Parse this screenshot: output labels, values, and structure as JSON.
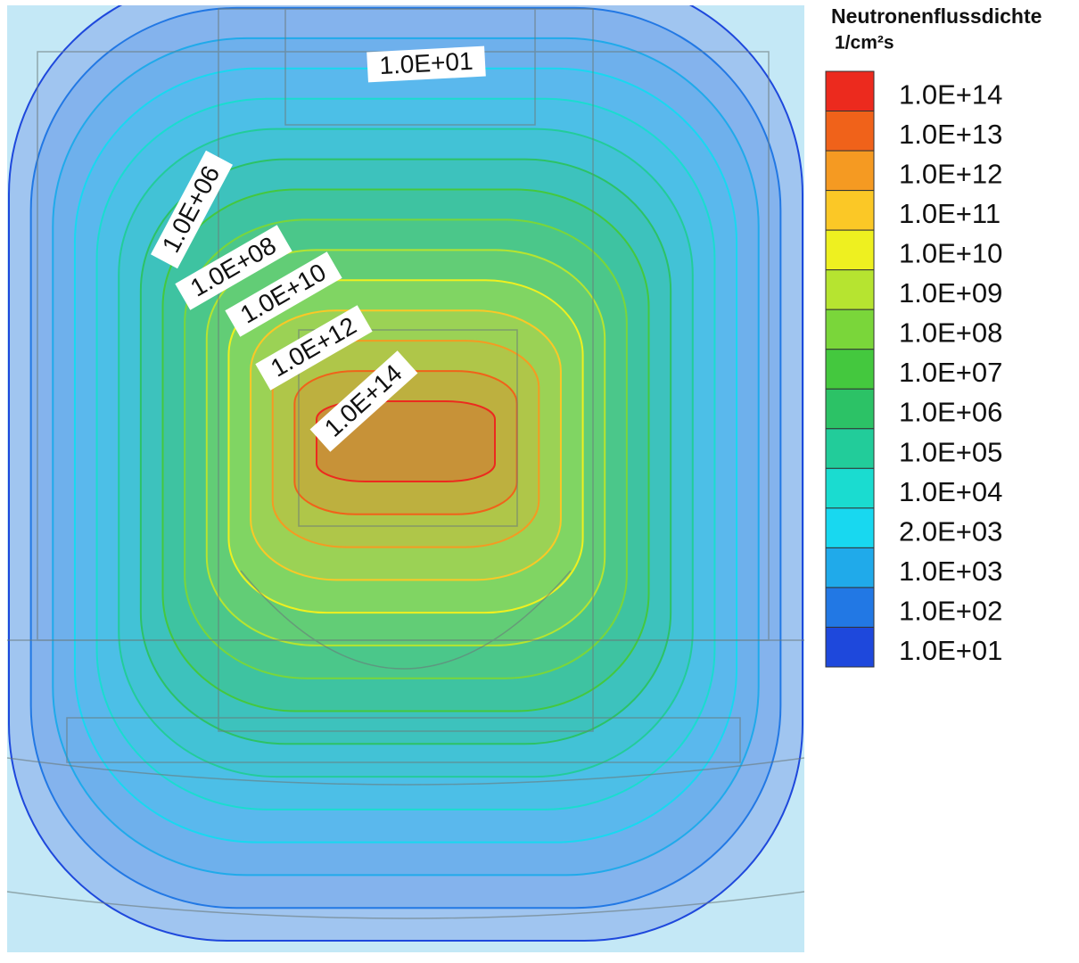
{
  "chart_data": {
    "type": "contour",
    "legend_title": "Neutronenflussdichte",
    "legend_unit": "1/cm²s",
    "levels": [
      {
        "value": 100000000000000.0,
        "label": "1.0E+14"
      },
      {
        "value": 10000000000000.0,
        "label": "1.0E+13"
      },
      {
        "value": 1000000000000.0,
        "label": "1.0E+12"
      },
      {
        "value": 100000000000.0,
        "label": "1.0E+11"
      },
      {
        "value": 10000000000.0,
        "label": "1.0E+10"
      },
      {
        "value": 1000000000.0,
        "label": "1.0E+09"
      },
      {
        "value": 100000000.0,
        "label": "1.0E+08"
      },
      {
        "value": 10000000.0,
        "label": "1.0E+07"
      },
      {
        "value": 1000000.0,
        "label": "1.0E+06"
      },
      {
        "value": 100000.0,
        "label": "1.0E+05"
      },
      {
        "value": 10000.0,
        "label": "1.0E+04"
      },
      {
        "value": 2000.0,
        "label": "2.0E+03"
      },
      {
        "value": 1000.0,
        "label": "1.0E+03"
      },
      {
        "value": 100.0,
        "label": "1.0E+02"
      },
      {
        "value": 10.0,
        "label": "1.0E+01"
      }
    ],
    "colors": [
      "#ec2a1e",
      "#f0621a",
      "#f59a22",
      "#fbc826",
      "#eef020",
      "#b6e430",
      "#7ad63a",
      "#44c83e",
      "#2cc266",
      "#22cc9a",
      "#1adcd0",
      "#18d8f0",
      "#20aaea",
      "#2278e4",
      "#1e48dc"
    ],
    "annotations": [
      "1.0E+01",
      "1.0E+06",
      "1.0E+08",
      "1.0E+10",
      "1.0E+12",
      "1.0E+14"
    ]
  }
}
